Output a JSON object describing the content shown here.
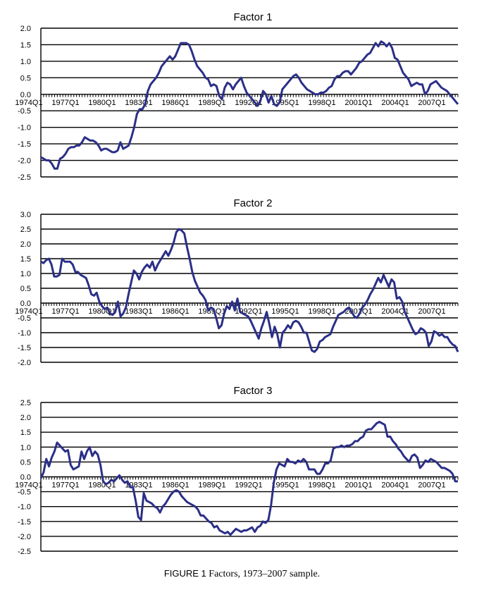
{
  "caption": {
    "label": "FIGURE 1",
    "text": "Factors, 1973–2007 sample."
  },
  "colors": {
    "line": "#2b2f87",
    "grid": "#000000"
  },
  "chart_data": [
    {
      "type": "line",
      "title": "Factor 1",
      "ylim": [
        -2.5,
        2.0
      ],
      "yticks": [
        "2.0",
        "1.5",
        "1.0",
        "0.5",
        "0.0",
        "-0.5",
        "-1.0",
        "-1.5",
        "-2.0",
        "-2.5"
      ],
      "xtick_labels": [
        "1974Q1",
        "1977Q1",
        "1980Q1",
        "1983Q1",
        "1986Q1",
        "1989Q1",
        "1992Q1",
        "1995Q1",
        "1998Q1",
        "2001Q1",
        "2004Q1",
        "2007Q1"
      ],
      "grid": true,
      "x_quarterly_from": "1973Q4",
      "values": [
        -1.9,
        -1.95,
        -2.0,
        -2.0,
        -2.1,
        -2.25,
        -2.25,
        -1.95,
        -1.9,
        -1.8,
        -1.65,
        -1.6,
        -1.6,
        -1.55,
        -1.55,
        -1.45,
        -1.3,
        -1.35,
        -1.4,
        -1.4,
        -1.45,
        -1.55,
        -1.7,
        -1.65,
        -1.65,
        -1.7,
        -1.75,
        -1.75,
        -1.7,
        -1.45,
        -1.65,
        -1.6,
        -1.55,
        -1.3,
        -1.0,
        -0.6,
        -0.45,
        -0.45,
        -0.3,
        0.1,
        0.3,
        0.4,
        0.5,
        0.65,
        0.85,
        0.95,
        1.05,
        1.15,
        1.05,
        1.15,
        1.35,
        1.55,
        1.55,
        1.55,
        1.5,
        1.3,
        1.05,
        0.85,
        0.75,
        0.65,
        0.5,
        0.45,
        0.25,
        0.3,
        0.25,
        -0.05,
        -0.15,
        0.2,
        0.35,
        0.3,
        0.15,
        0.3,
        0.4,
        0.5,
        0.25,
        0.05,
        -0.05,
        -0.15,
        -0.25,
        -0.35,
        -0.2,
        0.1,
        0.0,
        -0.25,
        -0.05,
        -0.3,
        -0.35,
        -0.25,
        0.15,
        0.25,
        0.35,
        0.45,
        0.55,
        0.6,
        0.5,
        0.35,
        0.25,
        0.15,
        0.1,
        0.05,
        0.0,
        0.0,
        0.05,
        0.05,
        0.1,
        0.2,
        0.25,
        0.45,
        0.55,
        0.55,
        0.65,
        0.7,
        0.7,
        0.6,
        0.7,
        0.8,
        0.95,
        1.0,
        1.1,
        1.2,
        1.25,
        1.4,
        1.55,
        1.45,
        1.6,
        1.55,
        1.45,
        1.55,
        1.4,
        1.1,
        1.05,
        0.85,
        0.65,
        0.55,
        0.45,
        0.25,
        0.3,
        0.35,
        0.3,
        0.3,
        0.0,
        0.1,
        0.3,
        0.35,
        0.4,
        0.3,
        0.2,
        0.15,
        0.1,
        0.0,
        -0.1,
        -0.2,
        -0.3
      ]
    },
    {
      "type": "line",
      "title": "Factor 2",
      "ylim": [
        -2.0,
        3.0
      ],
      "yticks": [
        "3.0",
        "2.5",
        "2.0",
        "1.5",
        "1.0",
        "0.5",
        "0.0",
        "-0.5",
        "-1.0",
        "-1.5",
        "-2.0"
      ],
      "xtick_labels": [
        "1974Q1",
        "1977Q1",
        "1980Q1",
        "1983Q1",
        "1986Q1",
        "1989Q1",
        "1992Q1",
        "1995Q1",
        "1998Q1",
        "2001Q1",
        "2004Q1",
        "2007Q1"
      ],
      "grid": true,
      "x_quarterly_from": "1973Q4",
      "values": [
        1.4,
        1.35,
        1.45,
        1.5,
        1.3,
        0.9,
        0.9,
        0.95,
        1.5,
        1.4,
        1.4,
        1.4,
        1.3,
        1.05,
        1.05,
        0.95,
        0.9,
        0.85,
        0.6,
        0.3,
        0.25,
        0.35,
        0.05,
        -0.1,
        -0.2,
        -0.15,
        -0.35,
        -0.4,
        -0.3,
        0.05,
        -0.45,
        -0.35,
        -0.15,
        0.3,
        0.7,
        1.1,
        1.0,
        0.8,
        1.05,
        1.2,
        1.3,
        1.2,
        1.4,
        1.1,
        1.3,
        1.45,
        1.6,
        1.75,
        1.6,
        1.8,
        2.05,
        2.4,
        2.5,
        2.45,
        2.35,
        1.9,
        1.5,
        1.05,
        0.75,
        0.55,
        0.35,
        0.25,
        0.1,
        -0.25,
        -0.15,
        -0.2,
        -0.5,
        -0.85,
        -0.75,
        -0.35,
        -0.1,
        -0.2,
        0.05,
        -0.25,
        0.15,
        -0.3,
        -0.35,
        -0.4,
        -0.45,
        -0.6,
        -0.8,
        -1.0,
        -1.2,
        -0.85,
        -0.6,
        -0.3,
        -0.7,
        -1.15,
        -0.8,
        -1.05,
        -1.5,
        -1.0,
        -0.9,
        -0.75,
        -0.85,
        -0.65,
        -0.6,
        -0.65,
        -0.8,
        -1.0,
        -1.0,
        -1.3,
        -1.6,
        -1.65,
        -1.55,
        -1.3,
        -1.25,
        -1.15,
        -1.1,
        -1.05,
        -0.8,
        -0.6,
        -0.4,
        -0.35,
        -0.3,
        -0.2,
        -0.15,
        -0.3,
        -0.45,
        -0.5,
        -0.35,
        -0.15,
        -0.05,
        0.1,
        0.3,
        0.45,
        0.65,
        0.85,
        0.7,
        0.95,
        0.75,
        0.55,
        0.8,
        0.7,
        0.15,
        0.2,
        0.05,
        -0.3,
        -0.5,
        -0.7,
        -0.9,
        -1.05,
        -1.0,
        -0.85,
        -0.9,
        -1.0,
        -1.45,
        -1.3,
        -0.95,
        -1.0,
        -1.1,
        -1.05,
        -1.15,
        -1.15,
        -1.3,
        -1.4,
        -1.45,
        -1.65
      ]
    },
    {
      "type": "line",
      "title": "Factor 3",
      "ylim": [
        -2.5,
        2.5
      ],
      "yticks": [
        "2.5",
        "2.0",
        "1.5",
        "1.0",
        "0.5",
        "0.0",
        "-0.5",
        "-1.0",
        "-1.5",
        "-2.0",
        "-2.5"
      ],
      "xtick_labels": [
        "1974Q1",
        "1977Q1",
        "1980Q1",
        "1983Q1",
        "1986Q1",
        "1989Q1",
        "1992Q1",
        "1995Q1",
        "1998Q1",
        "2001Q1",
        "2004Q1",
        "2007Q1"
      ],
      "grid": true,
      "x_quarterly_from": "1973Q4",
      "values": [
        -0.05,
        0.15,
        0.6,
        0.35,
        0.65,
        0.85,
        1.15,
        1.05,
        0.95,
        0.85,
        0.9,
        0.4,
        0.25,
        0.3,
        0.35,
        0.85,
        0.6,
        0.85,
        1.0,
        0.7,
        0.85,
        0.75,
        0.4,
        -0.15,
        -0.25,
        -0.2,
        -0.1,
        -0.15,
        -0.05,
        0.05,
        -0.1,
        -0.2,
        -0.15,
        -0.35,
        -0.35,
        -0.8,
        -1.35,
        -1.45,
        -0.55,
        -0.8,
        -0.85,
        -0.9,
        -1.0,
        -1.05,
        -1.2,
        -1.0,
        -0.9,
        -0.75,
        -0.6,
        -0.5,
        -0.45,
        -0.5,
        -0.65,
        -0.75,
        -0.85,
        -0.9,
        -0.95,
        -1.0,
        -1.1,
        -1.3,
        -1.3,
        -1.4,
        -1.5,
        -1.55,
        -1.7,
        -1.65,
        -1.8,
        -1.85,
        -1.9,
        -1.85,
        -1.95,
        -1.85,
        -1.75,
        -1.8,
        -1.85,
        -1.8,
        -1.8,
        -1.75,
        -1.7,
        -1.85,
        -1.7,
        -1.65,
        -1.5,
        -1.55,
        -1.45,
        -0.95,
        -0.2,
        0.25,
        0.45,
        0.4,
        0.35,
        0.6,
        0.5,
        0.5,
        0.45,
        0.55,
        0.5,
        0.6,
        0.5,
        0.25,
        0.25,
        0.25,
        0.1,
        0.1,
        0.25,
        0.45,
        0.45,
        0.55,
        0.95,
        1.0,
        1.0,
        1.05,
        1.0,
        1.05,
        1.05,
        1.1,
        1.2,
        1.2,
        1.3,
        1.35,
        1.55,
        1.6,
        1.6,
        1.7,
        1.8,
        1.85,
        1.8,
        1.75,
        1.35,
        1.35,
        1.2,
        1.1,
        0.95,
        0.85,
        0.7,
        0.6,
        0.5,
        0.7,
        0.75,
        0.65,
        0.3,
        0.4,
        0.55,
        0.5,
        0.6,
        0.55,
        0.5,
        0.4,
        0.3,
        0.3,
        0.25,
        0.2,
        0.1,
        -0.15,
        -0.15
      ]
    }
  ]
}
